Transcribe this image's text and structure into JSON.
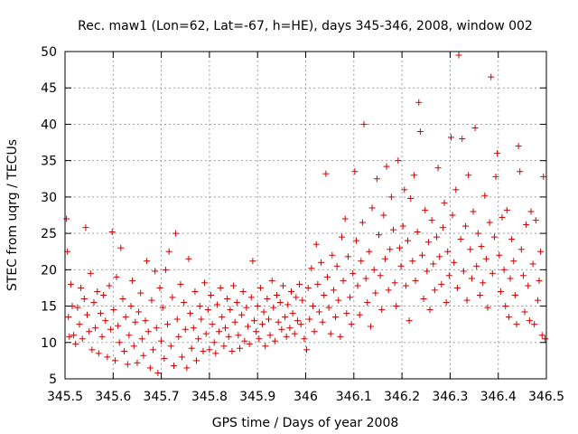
{
  "chart_data": {
    "type": "scatter",
    "title": "Rec. maw1 (Lon=62, Lat=-67, h=HE), days 345-346, 2008, window 002",
    "xlabel": "GPS time / Days of year 2008",
    "ylabel": "STEC from uqrg / TECUs",
    "xlim": [
      345.5,
      346.5
    ],
    "ylim": [
      5,
      50
    ],
    "xticks": [
      345.5,
      345.6,
      345.7,
      345.8,
      345.9,
      346,
      346.1,
      346.2,
      346.3,
      346.4,
      346.5
    ],
    "xtick_labels": [
      "345.5",
      "345.6",
      "345.7",
      "345.8",
      "345.9",
      "346",
      "346.1",
      "346.2",
      "346.3",
      "346.4",
      "346.5"
    ],
    "yticks": [
      5,
      10,
      15,
      20,
      25,
      30,
      35,
      40,
      45,
      50
    ],
    "ytick_labels": [
      "5",
      "10",
      "15",
      "20",
      "25",
      "30",
      "35",
      "40",
      "45",
      "50"
    ],
    "grid": true,
    "marker": "+",
    "color": "#cc0000",
    "series": [
      {
        "points": [
          [
            345.503,
            27.0
          ],
          [
            345.505,
            22.5
          ],
          [
            345.507,
            13.5
          ],
          [
            345.509,
            10.8
          ],
          [
            345.512,
            18.0
          ],
          [
            345.515,
            15.0
          ],
          [
            345.518,
            11.0
          ],
          [
            345.522,
            9.8
          ],
          [
            345.526,
            14.8
          ],
          [
            345.53,
            12.5
          ],
          [
            345.533,
            17.5
          ],
          [
            345.536,
            10.5
          ],
          [
            345.54,
            16.0
          ],
          [
            345.543,
            25.8
          ],
          [
            345.546,
            13.8
          ],
          [
            345.55,
            11.5
          ],
          [
            345.553,
            19.5
          ],
          [
            345.556,
            9.0
          ],
          [
            345.56,
            15.5
          ],
          [
            345.563,
            12.0
          ],
          [
            345.567,
            17.0
          ],
          [
            345.57,
            8.5
          ],
          [
            345.574,
            14.0
          ],
          [
            345.577,
            10.8
          ],
          [
            345.58,
            16.5
          ],
          [
            345.584,
            13.0
          ],
          [
            345.588,
            8.0
          ],
          [
            345.592,
            17.8
          ],
          [
            345.595,
            11.8
          ],
          [
            345.598,
            25.2
          ],
          [
            345.601,
            14.5
          ],
          [
            345.604,
            7.5
          ],
          [
            345.607,
            19.0
          ],
          [
            345.61,
            12.3
          ],
          [
            345.613,
            10.0
          ],
          [
            345.616,
            23.0
          ],
          [
            345.62,
            16.0
          ],
          [
            345.623,
            8.8
          ],
          [
            345.626,
            13.5
          ],
          [
            345.63,
            7.0
          ],
          [
            345.633,
            11.0
          ],
          [
            345.637,
            15.0
          ],
          [
            345.64,
            18.5
          ],
          [
            345.643,
            9.5
          ],
          [
            345.646,
            12.8
          ],
          [
            345.65,
            7.2
          ],
          [
            345.653,
            14.2
          ],
          [
            345.657,
            16.8
          ],
          [
            345.66,
            10.5
          ],
          [
            345.663,
            8.2
          ],
          [
            345.667,
            13.0
          ],
          [
            345.67,
            21.2
          ],
          [
            345.673,
            11.5
          ],
          [
            345.677,
            6.5
          ],
          [
            345.68,
            15.8
          ],
          [
            345.683,
            9.0
          ],
          [
            345.687,
            19.8
          ],
          [
            345.69,
            12.0
          ],
          [
            345.693,
            5.8
          ],
          [
            345.697,
            17.5
          ],
          [
            345.7,
            10.2
          ],
          [
            345.703,
            14.8
          ],
          [
            345.706,
            7.8
          ],
          [
            345.709,
            20.0
          ],
          [
            345.713,
            12.5
          ],
          [
            345.716,
            22.5
          ],
          [
            345.72,
            9.5
          ],
          [
            345.723,
            16.2
          ],
          [
            345.726,
            6.8
          ],
          [
            345.73,
            25.0
          ],
          [
            345.733,
            13.2
          ],
          [
            345.736,
            10.8
          ],
          [
            345.74,
            18.0
          ],
          [
            345.743,
            8.0
          ],
          [
            345.747,
            15.5
          ],
          [
            345.75,
            11.8
          ],
          [
            345.753,
            6.5
          ],
          [
            345.757,
            21.5
          ],
          [
            345.76,
            14.0
          ],
          [
            345.763,
            9.2
          ],
          [
            345.767,
            12.0
          ],
          [
            345.77,
            17.0
          ],
          [
            345.773,
            7.5
          ],
          [
            345.777,
            10.5
          ],
          [
            345.78,
            15.0
          ],
          [
            345.783,
            13.2
          ],
          [
            345.787,
            8.8
          ],
          [
            345.79,
            18.2
          ],
          [
            345.793,
            11.2
          ],
          [
            345.797,
            14.5
          ],
          [
            345.8,
            9.0
          ],
          [
            345.803,
            16.5
          ],
          [
            345.806,
            12.5
          ],
          [
            345.81,
            10.0
          ],
          [
            345.813,
            8.5
          ],
          [
            345.816,
            15.2
          ],
          [
            345.82,
            11.5
          ],
          [
            345.823,
            17.5
          ],
          [
            345.826,
            13.5
          ],
          [
            345.83,
            9.5
          ],
          [
            345.833,
            12.0
          ],
          [
            345.837,
            16.0
          ],
          [
            345.84,
            10.8
          ],
          [
            345.843,
            14.5
          ],
          [
            345.847,
            8.8
          ],
          [
            345.85,
            17.8
          ],
          [
            345.853,
            12.8
          ],
          [
            345.857,
            15.5
          ],
          [
            345.86,
            11.0
          ],
          [
            345.863,
            9.2
          ],
          [
            345.867,
            13.8
          ],
          [
            345.87,
            17.0
          ],
          [
            345.873,
            10.2
          ],
          [
            345.877,
            14.8
          ],
          [
            345.88,
            12.2
          ],
          [
            345.883,
            9.8
          ],
          [
            345.887,
            16.2
          ],
          [
            345.89,
            21.2
          ],
          [
            345.893,
            13.0
          ],
          [
            345.897,
            11.5
          ],
          [
            345.9,
            15.0
          ],
          [
            345.903,
            10.5
          ],
          [
            345.906,
            17.5
          ],
          [
            345.91,
            12.5
          ],
          [
            345.913,
            14.2
          ],
          [
            345.916,
            9.5
          ],
          [
            345.92,
            16.0
          ],
          [
            345.923,
            13.2
          ],
          [
            345.926,
            11.0
          ],
          [
            345.93,
            18.5
          ],
          [
            345.933,
            14.8
          ],
          [
            345.936,
            10.2
          ],
          [
            345.94,
            16.5
          ],
          [
            345.943,
            12.8
          ],
          [
            345.947,
            15.5
          ],
          [
            345.95,
            11.8
          ],
          [
            345.953,
            17.8
          ],
          [
            345.957,
            13.5
          ],
          [
            345.96,
            10.8
          ],
          [
            345.963,
            15.2
          ],
          [
            345.967,
            12.0
          ],
          [
            345.97,
            17.0
          ],
          [
            345.973,
            14.0
          ],
          [
            345.977,
            11.2
          ],
          [
            345.98,
            16.2
          ],
          [
            345.983,
            13.0
          ],
          [
            345.987,
            18.0
          ],
          [
            345.99,
            12.5
          ],
          [
            345.993,
            15.8
          ],
          [
            345.997,
            10.5
          ],
          [
            346.002,
            9.0
          ],
          [
            346.005,
            17.5
          ],
          [
            346.008,
            13.2
          ],
          [
            346.012,
            20.2
          ],
          [
            346.015,
            15.0
          ],
          [
            346.018,
            11.5
          ],
          [
            346.022,
            23.5
          ],
          [
            346.025,
            18.0
          ],
          [
            346.028,
            14.2
          ],
          [
            346.032,
            21.0
          ],
          [
            346.035,
            12.8
          ],
          [
            346.038,
            16.5
          ],
          [
            346.042,
            33.2
          ],
          [
            346.045,
            19.0
          ],
          [
            346.048,
            14.8
          ],
          [
            346.052,
            11.2
          ],
          [
            346.055,
            22.0
          ],
          [
            346.058,
            17.2
          ],
          [
            346.062,
            13.5
          ],
          [
            346.065,
            20.5
          ],
          [
            346.068,
            15.8
          ],
          [
            346.072,
            10.8
          ],
          [
            346.075,
            24.5
          ],
          [
            346.078,
            18.5
          ],
          [
            346.082,
            27.0
          ],
          [
            346.085,
            14.0
          ],
          [
            346.088,
            21.8
          ],
          [
            346.092,
            16.2
          ],
          [
            346.095,
            12.5
          ],
          [
            346.098,
            19.5
          ],
          [
            346.102,
            33.5
          ],
          [
            346.105,
            24.0
          ],
          [
            346.108,
            17.8
          ],
          [
            346.112,
            13.8
          ],
          [
            346.115,
            21.2
          ],
          [
            346.118,
            26.5
          ],
          [
            346.121,
            40.0
          ],
          [
            346.125,
            18.8
          ],
          [
            346.128,
            15.5
          ],
          [
            346.132,
            22.5
          ],
          [
            346.135,
            12.2
          ],
          [
            346.138,
            28.5
          ],
          [
            346.142,
            20.0
          ],
          [
            346.145,
            16.8
          ],
          [
            346.148,
            32.5
          ],
          [
            346.152,
            24.8
          ],
          [
            346.155,
            19.2
          ],
          [
            346.158,
            14.5
          ],
          [
            346.162,
            27.5
          ],
          [
            346.165,
            21.5
          ],
          [
            346.168,
            34.2
          ],
          [
            346.172,
            17.2
          ],
          [
            346.175,
            22.8
          ],
          [
            346.178,
            30.0
          ],
          [
            346.182,
            25.5
          ],
          [
            346.185,
            18.2
          ],
          [
            346.188,
            15.0
          ],
          [
            346.192,
            35.0
          ],
          [
            346.195,
            23.0
          ],
          [
            346.198,
            20.5
          ],
          [
            346.202,
            26.0
          ],
          [
            346.205,
            31.0
          ],
          [
            346.208,
            17.8
          ],
          [
            346.212,
            24.0
          ],
          [
            346.215,
            13.0
          ],
          [
            346.218,
            29.8
          ],
          [
            346.222,
            21.2
          ],
          [
            346.225,
            33.0
          ],
          [
            346.228,
            18.5
          ],
          [
            346.232,
            25.2
          ],
          [
            346.235,
            43.0
          ],
          [
            346.238,
            39.0
          ],
          [
            346.242,
            22.0
          ],
          [
            346.245,
            16.0
          ],
          [
            346.248,
            28.2
          ],
          [
            346.252,
            19.8
          ],
          [
            346.255,
            23.8
          ],
          [
            346.258,
            14.5
          ],
          [
            346.262,
            26.8
          ],
          [
            346.265,
            20.8
          ],
          [
            346.268,
            17.2
          ],
          [
            346.272,
            24.5
          ],
          [
            346.275,
            34.0
          ],
          [
            346.278,
            21.8
          ],
          [
            346.282,
            18.0
          ],
          [
            346.285,
            25.8
          ],
          [
            346.288,
            29.2
          ],
          [
            346.292,
            15.5
          ],
          [
            346.295,
            22.5
          ],
          [
            346.298,
            19.2
          ],
          [
            346.302,
            38.2
          ],
          [
            346.305,
            27.5
          ],
          [
            346.308,
            21.0
          ],
          [
            346.312,
            31.0
          ],
          [
            346.315,
            17.5
          ],
          [
            346.318,
            49.5
          ],
          [
            346.322,
            24.2
          ],
          [
            346.325,
            38.0
          ],
          [
            346.328,
            19.8
          ],
          [
            346.332,
            26.0
          ],
          [
            346.335,
            15.8
          ],
          [
            346.338,
            33.0
          ],
          [
            346.342,
            22.8
          ],
          [
            346.345,
            18.8
          ],
          [
            346.348,
            28.0
          ],
          [
            346.352,
            39.5
          ],
          [
            346.355,
            20.5
          ],
          [
            346.358,
            25.0
          ],
          [
            346.362,
            16.5
          ],
          [
            346.365,
            23.2
          ],
          [
            346.368,
            18.2
          ],
          [
            346.372,
            30.2
          ],
          [
            346.375,
            21.5
          ],
          [
            346.378,
            14.8
          ],
          [
            346.382,
            26.5
          ],
          [
            346.385,
            46.5
          ],
          [
            346.388,
            19.5
          ],
          [
            346.392,
            24.5
          ],
          [
            346.395,
            32.8
          ],
          [
            346.398,
            36.0
          ],
          [
            346.402,
            22.0
          ],
          [
            346.405,
            17.0
          ],
          [
            346.408,
            27.2
          ],
          [
            346.412,
            20.0
          ],
          [
            346.415,
            15.0
          ],
          [
            346.418,
            28.2
          ],
          [
            346.422,
            13.5
          ],
          [
            346.425,
            18.8
          ],
          [
            346.428,
            24.2
          ],
          [
            346.432,
            21.2
          ],
          [
            346.435,
            16.5
          ],
          [
            346.438,
            12.5
          ],
          [
            346.442,
            37.0
          ],
          [
            346.445,
            33.5
          ],
          [
            346.448,
            22.8
          ],
          [
            346.452,
            19.2
          ],
          [
            346.455,
            14.2
          ],
          [
            346.458,
            26.2
          ],
          [
            346.462,
            17.8
          ],
          [
            346.465,
            13.0
          ],
          [
            346.468,
            28.0
          ],
          [
            346.472,
            20.8
          ],
          [
            346.475,
            12.5
          ],
          [
            346.478,
            26.8
          ],
          [
            346.482,
            15.8
          ],
          [
            346.485,
            18.5
          ],
          [
            346.488,
            22.5
          ],
          [
            346.491,
            11.0
          ],
          [
            346.494,
            32.8
          ],
          [
            346.497,
            10.5
          ]
        ]
      }
    ]
  }
}
